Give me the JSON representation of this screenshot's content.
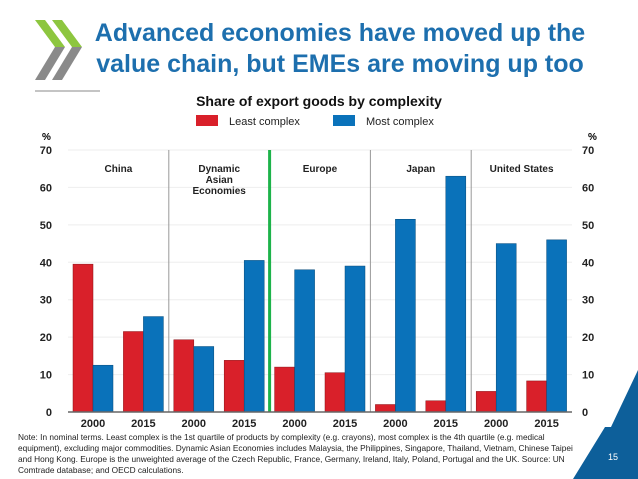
{
  "title_lines": [
    "Advanced economies have moved up the",
    "value chain, but EMEs are moving up too"
  ],
  "page_number": "15",
  "note": "Note: In nominal terms. Least complex is the 1st quartile of products by complexity (e.g. crayons), most complex is the 4th quartile (e.g. medical equipment), excluding major commodities. Dynamic Asian Economies includes Malaysia, the Philippines, Singapore, Thailand, Vietnam, Chinese Taipei and Hong Kong. Europe is the unweighted average of the Czech Republic, France, Germany, Ireland, Italy, Poland, Portugal and the UK. Source: UN Comtrade database; and OECD calculations.",
  "colors": {
    "least": "#d9202a",
    "most": "#0a72ba",
    "title": "#1d6fae",
    "divider": "#999999",
    "highlight_divider": "#1db34a"
  },
  "chart_data": {
    "type": "bar",
    "title": "Share of export goods by complexity",
    "ylabel": "%",
    "ylim": [
      0,
      70
    ],
    "yticks": [
      0,
      10,
      20,
      30,
      40,
      50,
      60,
      70
    ],
    "legend": [
      "Least complex",
      "Most complex"
    ],
    "legend_position": "top",
    "groups": [
      {
        "name": "China",
        "years": [
          "2000",
          "2015"
        ],
        "least": [
          39.5,
          21.5
        ],
        "most": [
          12.5,
          25.5
        ]
      },
      {
        "name": "Dynamic Asian Economies",
        "years": [
          "2000",
          "2015"
        ],
        "least": [
          19.3,
          13.8
        ],
        "most": [
          17.5,
          40.5
        ]
      },
      {
        "name": "Europe",
        "years": [
          "2000",
          "2015"
        ],
        "least": [
          12,
          10.5
        ],
        "most": [
          38,
          39
        ]
      },
      {
        "name": "Japan",
        "years": [
          "2000",
          "2015"
        ],
        "least": [
          2,
          3
        ],
        "most": [
          51.5,
          63
        ]
      },
      {
        "name": "United States",
        "years": [
          "2000",
          "2015"
        ],
        "least": [
          5.5,
          8.3
        ],
        "most": [
          45,
          46
        ]
      }
    ]
  }
}
